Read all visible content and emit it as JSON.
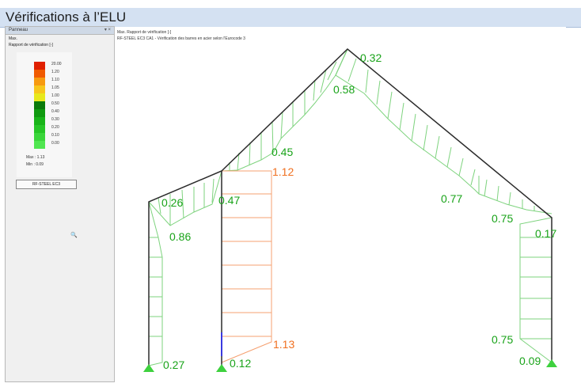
{
  "window": {
    "title": "Vérifications à l’ELU"
  },
  "panel": {
    "title": "Panneau",
    "controls": "▾ ×",
    "subtitle_1": "Max.",
    "subtitle_2": "Rapport de vérification [-]",
    "legend": [
      {
        "value": "20.00",
        "color": "#e02000"
      },
      {
        "value": "1.20",
        "color": "#f05a00"
      },
      {
        "value": "1.10",
        "color": "#f79a10"
      },
      {
        "value": "1.05",
        "color": "#f7c61c"
      },
      {
        "value": "1.00",
        "color": "#e8e81c"
      },
      {
        "value": "0.50",
        "color": "#0a7a0a"
      },
      {
        "value": "0.40",
        "color": "#0f9a0f"
      },
      {
        "value": "0.30",
        "color": "#18b418"
      },
      {
        "value": "0.20",
        "color": "#26c626"
      },
      {
        "value": "0.10",
        "color": "#3ad63a"
      },
      {
        "value": "0.00",
        "color": "#50e650"
      }
    ],
    "max_label": "Max :",
    "max_value": "1.13",
    "min_label": "Min :",
    "min_value": "0.09",
    "module_button": "RF-STEEL EC3",
    "zoom_icon": "magnifier-icon"
  },
  "canvas": {
    "header_1": "Max. Rapport de vérification [-]",
    "header_2": "RF-STEEL EC3 CA1 - Vérification des barres en acier selon l'Eurocode 3",
    "labels": [
      {
        "id": "l032",
        "text": "0.32",
        "color": "#19a319"
      },
      {
        "id": "l058",
        "text": "0.58",
        "color": "#19a319"
      },
      {
        "id": "l045",
        "text": "0.45",
        "color": "#19a319"
      },
      {
        "id": "l112",
        "text": "1.12",
        "color": "#f07020"
      },
      {
        "id": "l026",
        "text": "0.26",
        "color": "#19a319"
      },
      {
        "id": "l047",
        "text": "0.47",
        "color": "#19a319"
      },
      {
        "id": "l086",
        "text": "0.86",
        "color": "#19a319"
      },
      {
        "id": "l077",
        "text": "0.77",
        "color": "#19a319"
      },
      {
        "id": "l075a",
        "text": "0.75",
        "color": "#19a319"
      },
      {
        "id": "l017",
        "text": "0.17",
        "color": "#19a319"
      },
      {
        "id": "l075b",
        "text": "0.75",
        "color": "#19a319"
      },
      {
        "id": "l113",
        "text": "1.13",
        "color": "#f07020"
      },
      {
        "id": "l027",
        "text": "0.27",
        "color": "#19a319"
      },
      {
        "id": "l012",
        "text": "0.12",
        "color": "#19a319"
      },
      {
        "id": "l009",
        "text": "0.09",
        "color": "#19a319"
      }
    ]
  }
}
